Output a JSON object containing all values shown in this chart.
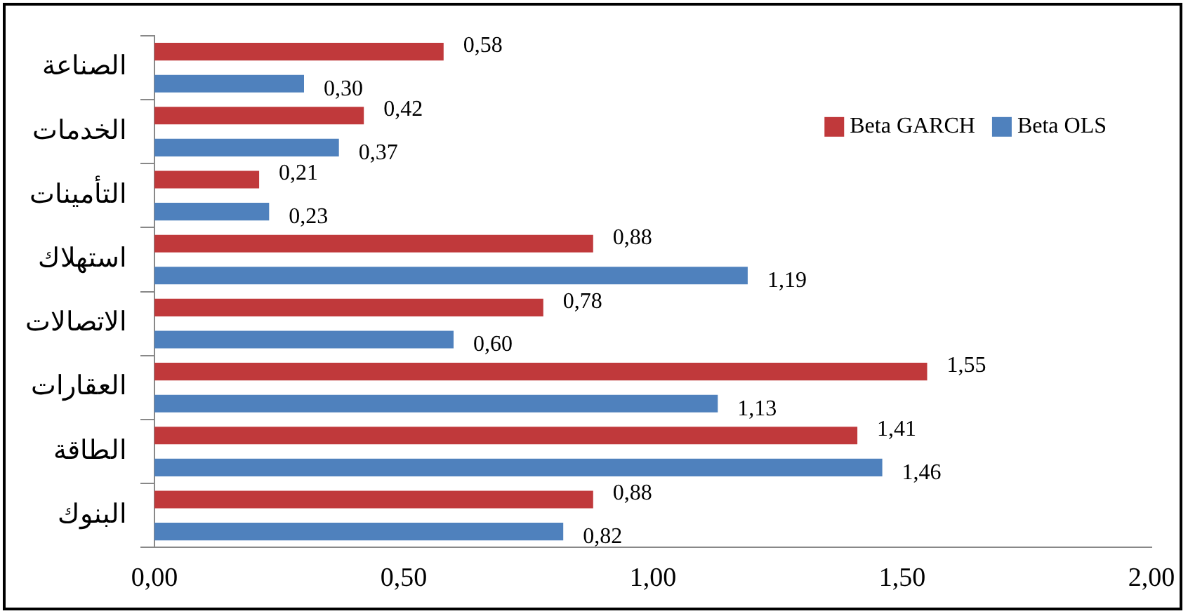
{
  "chart_data": {
    "type": "bar",
    "orientation": "horizontal",
    "categories": [
      "الصناعة",
      "الخدمات",
      "التأمينات",
      "استهلاك",
      "الاتصالات",
      "العقارات",
      "الطاقة",
      "البنوك"
    ],
    "series": [
      {
        "name": "Beta GARCH",
        "color": "#c0393b",
        "values": [
          0.58,
          0.42,
          0.21,
          0.88,
          0.78,
          1.55,
          1.41,
          0.88
        ],
        "value_labels": [
          "0,58",
          "0,42",
          "0,21",
          "0,88",
          "0,78",
          "1,55",
          "1,41",
          "0,88"
        ]
      },
      {
        "name": "Beta OLS",
        "color": "#4f81bd",
        "values": [
          0.3,
          0.37,
          0.23,
          1.19,
          0.6,
          1.13,
          1.46,
          0.82
        ],
        "value_labels": [
          "0,30",
          "0,37",
          "0,23",
          "1,19",
          "0,60",
          "1,13",
          "1,46",
          "0,82"
        ]
      }
    ],
    "xlim": [
      0,
      2
    ],
    "xticks": [
      {
        "value": 0,
        "label": "0,00"
      },
      {
        "value": 0.5,
        "label": "0,50"
      },
      {
        "value": 1,
        "label": "1,00"
      },
      {
        "value": 1.5,
        "label": "1,50"
      },
      {
        "value": 2,
        "label": "2,00"
      }
    ],
    "grid": false,
    "legend": "top right"
  }
}
